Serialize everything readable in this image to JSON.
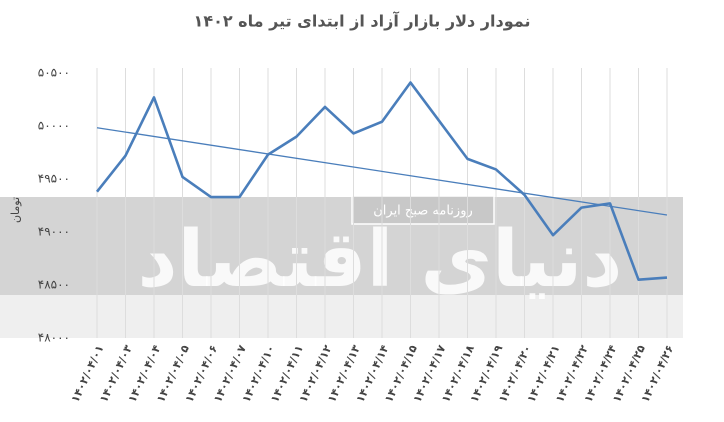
{
  "chart_data": {
    "type": "line",
    "title": "نمودار دلار بازار آزاد از ابتدای تیر ماه ۱۴۰۲",
    "y_label": "تومان",
    "watermark": {
      "brand": "دنیای اقتصاد",
      "subtitle": "روزنامه صبح ایران"
    },
    "categories": [
      "۱۴۰۲/۰۴/۰۱",
      "۱۴۰۲/۰۴/۰۳",
      "۱۴۰۲/۰۴/۰۴",
      "۱۴۰۲/۰۴/۰۵",
      "۱۴۰۲/۰۴/۰۶",
      "۱۴۰۲/۰۴/۰۷",
      "۱۴۰۲/۰۴/۱۰",
      "۱۴۰۲/۰۴/۱۱",
      "۱۴۰۲/۰۴/۱۲",
      "۱۴۰۲/۰۴/۱۳",
      "۱۴۰۲/۰۴/۱۴",
      "۱۴۰۲/۰۴/۱۵",
      "۱۴۰۲/۰۴/۱۷",
      "۱۴۰۲/۰۴/۱۸",
      "۱۴۰۲/۰۴/۱۹",
      "۱۴۰۲/۰۴/۲۰",
      "۱۴۰۲/۰۴/۲۱",
      "۱۴۰۲/۰۴/۲۲",
      "۱۴۰۲/۰۴/۲۴",
      "۱۴۰۲/۰۴/۲۵",
      "۱۴۰۲/۰۴/۲۶"
    ],
    "values": [
      49380,
      49720,
      50270,
      49520,
      49330,
      49330,
      49730,
      49900,
      50180,
      49930,
      50040,
      50410,
      50050,
      49690,
      49590,
      49350,
      48970,
      49230,
      49270,
      48550,
      48570
    ],
    "color": "#4a7ebb",
    "trendline": true,
    "vgrid": true,
    "ylim": [
      48000,
      50500
    ],
    "yticks": [
      {
        "value": 48000,
        "label": "۴۸۰۰۰"
      },
      {
        "value": 48500,
        "label": "۴۸۵۰۰"
      },
      {
        "value": 49000,
        "label": "۴۹۰۰۰"
      },
      {
        "value": 49500,
        "label": "۴۹۵۰۰"
      },
      {
        "value": 50000,
        "label": "۵۰۰۰۰"
      },
      {
        "value": 50500,
        "label": "۵۰۵۰۰"
      }
    ]
  }
}
